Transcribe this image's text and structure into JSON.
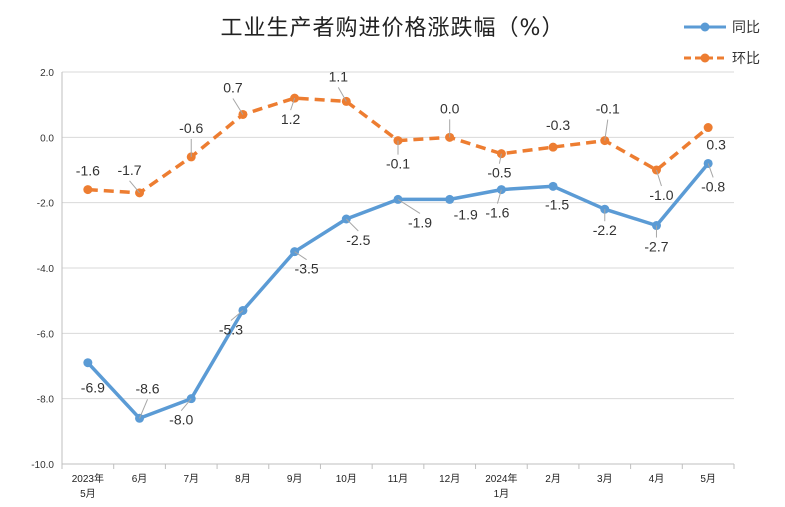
{
  "chart_data": {
    "type": "line",
    "title": "工业生产者购进价格涨跌幅（%）",
    "categories": [
      [
        "2023年",
        "5月"
      ],
      [
        "6月"
      ],
      [
        "7月"
      ],
      [
        "8月"
      ],
      [
        "9月"
      ],
      [
        "10月"
      ],
      [
        "11月"
      ],
      [
        "12月"
      ],
      [
        "2024年",
        "1月"
      ],
      [
        "2月"
      ],
      [
        "3月"
      ],
      [
        "4月"
      ],
      [
        "5月"
      ]
    ],
    "series": [
      {
        "name": "同比",
        "style": "solid",
        "color": "#5b9bd5",
        "values": [
          -6.9,
          -8.6,
          -8.0,
          -5.3,
          -3.5,
          -2.5,
          -1.9,
          -1.9,
          -1.6,
          -1.5,
          -2.2,
          -2.7,
          -0.8
        ],
        "labels": [
          "-6.9",
          "-8.6",
          "-8.0",
          "-5.3",
          "-3.5",
          "-2.5",
          "-1.9",
          "-1.9",
          "-1.6",
          "-1.5",
          "-2.2",
          "-2.7",
          "-0.8"
        ]
      },
      {
        "name": "环比",
        "style": "dashed",
        "color": "#ed7d31",
        "values": [
          -1.6,
          -1.7,
          -0.6,
          0.7,
          1.2,
          1.1,
          -0.1,
          0.0,
          -0.5,
          -0.3,
          -0.1,
          -1.0,
          0.3
        ],
        "labels": [
          "-1.6",
          "-1.7",
          "-0.6",
          "0.7",
          "1.2",
          "1.1",
          "-0.1",
          "0.0",
          "-0.5",
          "-0.3",
          "-0.1",
          "-1.0",
          "0.3"
        ]
      }
    ],
    "y_ticks": [
      "2.0",
      "0.0",
      "-2.0",
      "-4.0",
      "-6.0",
      "-8.0",
      "-10.0"
    ],
    "ylim": [
      -10,
      2
    ],
    "grid": true,
    "legend_position": "top-right"
  }
}
